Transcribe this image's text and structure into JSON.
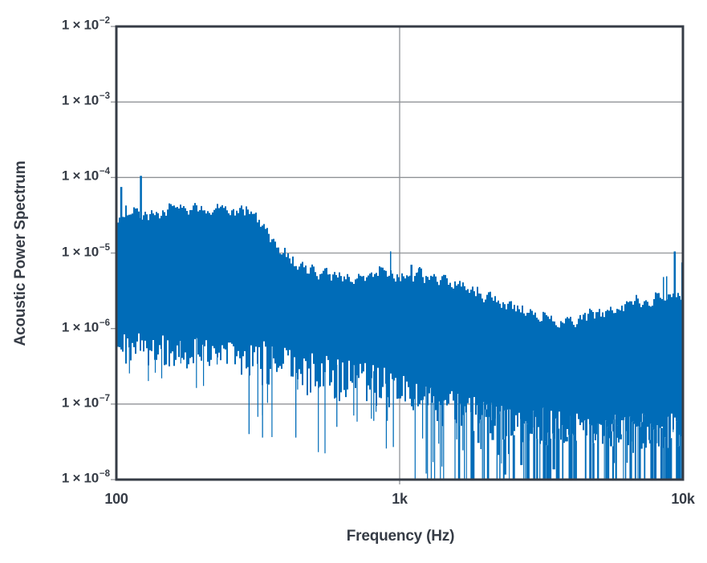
{
  "chart_data": {
    "type": "area",
    "title": "",
    "xlabel": "Frequency (Hz)",
    "ylabel": "Acoustic Power Spectrum",
    "x_scale": "log",
    "y_scale": "log",
    "xlim": [
      100,
      10000
    ],
    "ylim": [
      1e-08,
      0.01
    ],
    "grid": {
      "vertical_at": [
        1000
      ],
      "horizontal_at": [
        0.001,
        0.0001,
        1e-05,
        1e-06,
        1e-07
      ]
    },
    "x_ticks": [
      {
        "value": 100,
        "label": "100"
      },
      {
        "value": 1000,
        "label": "1k"
      },
      {
        "value": 10000,
        "label": "10k"
      }
    ],
    "y_ticks": [
      {
        "value": 0.01,
        "mantissa": "1 × 10",
        "exponent": "−2"
      },
      {
        "value": 0.001,
        "mantissa": "1 × 10",
        "exponent": "−3"
      },
      {
        "value": 0.0001,
        "mantissa": "1 × 10",
        "exponent": "−4"
      },
      {
        "value": 1e-05,
        "mantissa": "1 × 10",
        "exponent": "−5"
      },
      {
        "value": 1e-06,
        "mantissa": "1 × 10",
        "exponent": "−6"
      },
      {
        "value": 1e-07,
        "mantissa": "1 × 10",
        "exponent": "−7"
      },
      {
        "value": 1e-08,
        "mantissa": "1 × 10",
        "exponent": "−8"
      }
    ],
    "series": [
      {
        "name": "Acoustic power spectrum",
        "style": "filled-noise-band",
        "envelope_top": {
          "freq": [
            100,
            115,
            130,
            170,
            220,
            280,
            320,
            360,
            430,
            550,
            700,
            900,
            1050,
            1200,
            1500,
            1800,
            2200,
            2700,
            3300,
            4000,
            5000,
            6300,
            8000,
            9300,
            10000
          ],
          "value": [
            2.9e-05,
            3.2e-05,
            3e-05,
            3.6e-05,
            3.8e-05,
            3.4e-05,
            2.4e-05,
            1.1e-05,
            6.5e-06,
            5e-06,
            4.6e-06,
            5e-06,
            5.2e-06,
            4.6e-06,
            4.1e-06,
            3.1e-06,
            2.3e-06,
            1.7e-06,
            1.35e-06,
            1.2e-06,
            1.5e-06,
            1.9e-06,
            2.3e-06,
            2.6e-06,
            3e-06
          ]
        },
        "envelope_bottom": {
          "freq": [
            100,
            150,
            200,
            260,
            330,
            420,
            550,
            700,
            900,
            1100,
            1400,
            1800,
            2300,
            3000,
            4000,
            5500,
            7000,
            8500,
            10000
          ],
          "value": [
            5.5e-07,
            5e-07,
            4.5e-07,
            4.2e-07,
            3.4e-07,
            2.6e-07,
            2.2e-07,
            1.9e-07,
            1.6e-07,
            1.3e-07,
            9e-08,
            7.5e-08,
            6e-08,
            5e-08,
            5e-08,
            4.5e-08,
            4.5e-08,
            4e-08,
            5e-08
          ]
        },
        "peaks": [
          {
            "freq": 104,
            "value": 7.5e-05
          },
          {
            "freq": 122,
            "value": 0.000105
          },
          {
            "freq": 1100,
            "value": 7e-06
          },
          {
            "freq": 1170,
            "value": 6.3e-06
          },
          {
            "freq": 9350,
            "value": 1.05e-05
          },
          {
            "freq": 9950,
            "value": 7.5e-06
          }
        ],
        "nulls": [
          {
            "freq": 294,
            "value": 4e-08
          },
          {
            "freq": 328,
            "value": 3.6e-08
          },
          {
            "freq": 430,
            "value": 3.6e-08
          },
          {
            "freq": 600,
            "value": 5e-08
          },
          {
            "freq": 810,
            "value": 6e-08
          },
          {
            "freq": 950,
            "value": 2.7e-08
          },
          {
            "freq": 1240,
            "value": 1.2e-08
          }
        ]
      }
    ],
    "colors": {
      "series": "#006CB8",
      "axis": "#363C46",
      "grid": "#909397",
      "background": "#FFFFFF"
    }
  }
}
